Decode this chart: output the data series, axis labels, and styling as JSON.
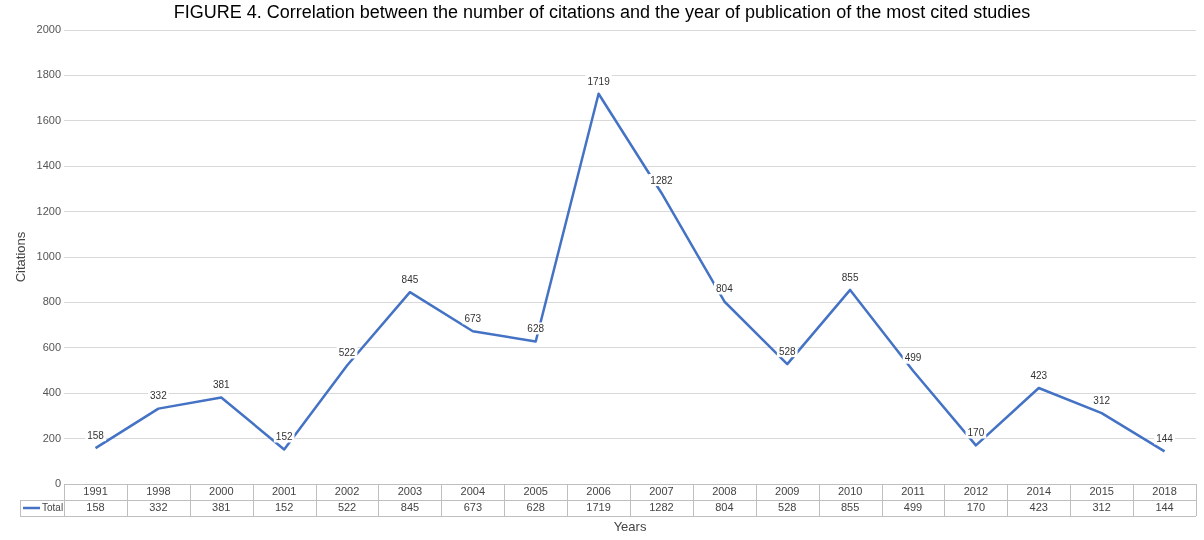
{
  "chart_data": {
    "type": "line",
    "title": "FIGURE 4. Correlation between the number of citations and the year of publication of the most cited studies",
    "xlabel": "Years",
    "ylabel": "Citations",
    "categories": [
      "1991",
      "1998",
      "2000",
      "2001",
      "2002",
      "2003",
      "2004",
      "2005",
      "2006",
      "2007",
      "2008",
      "2009",
      "2010",
      "2011",
      "2012",
      "2014",
      "2015",
      "2018"
    ],
    "series": [
      {
        "name": "Total",
        "color": "#4472c4",
        "values": [
          158,
          332,
          381,
          152,
          522,
          845,
          673,
          628,
          1719,
          1282,
          804,
          528,
          855,
          499,
          170,
          423,
          312,
          144
        ]
      }
    ],
    "annotations": [
      {
        "text": "158",
        "x": "1991"
      },
      {
        "text": "332",
        "x": "1998"
      },
      {
        "text": "381",
        "x": "2000"
      },
      {
        "text": "152",
        "x": "2001"
      },
      {
        "text": "522",
        "x": "2002"
      },
      {
        "text": "845",
        "x": "2003"
      },
      {
        "text": "673",
        "x": "2004"
      },
      {
        "text": "628",
        "x": "2005"
      },
      {
        "text": "1719",
        "x": "2006"
      },
      {
        "text": "1282",
        "x": "2007"
      },
      {
        "text": "804",
        "x": "2008"
      },
      {
        "text": "528",
        "x": "2009"
      },
      {
        "text": "855",
        "x": "2010"
      },
      {
        "text": "499",
        "x": "2011"
      },
      {
        "text": "170",
        "x": "2012"
      },
      {
        "text": "423",
        "x": "2014"
      },
      {
        "text": "312",
        "x": "2015"
      },
      {
        "text": "144",
        "x": "2018"
      }
    ],
    "ylim": [
      0,
      2000
    ],
    "yticks": [
      0,
      200,
      400,
      600,
      800,
      1000,
      1200,
      1400,
      1600,
      1800,
      2000
    ],
    "grid": "y",
    "data_labels": true
  }
}
